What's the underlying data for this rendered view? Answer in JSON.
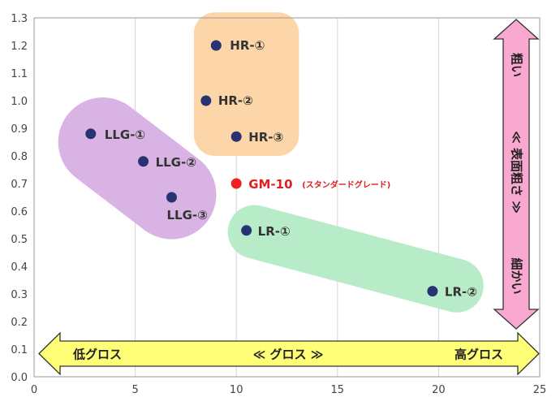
{
  "chart_data": {
    "type": "scatter",
    "xlim": [
      0,
      25
    ],
    "ylim": [
      0,
      1.3
    ],
    "x_ticks": [
      "0",
      "5",
      "10",
      "15",
      "20",
      "25"
    ],
    "y_ticks": [
      "0.0",
      "0.1",
      "0.2",
      "0.3",
      "0.4",
      "0.5",
      "0.6",
      "0.7",
      "0.8",
      "0.9",
      "1.0",
      "1.1",
      "1.2",
      "1.3"
    ],
    "grid": "vertical",
    "points": [
      {
        "label": "HR-①",
        "x": 9.0,
        "y": 1.2,
        "color": "#283372"
      },
      {
        "label": "HR-②",
        "x": 8.5,
        "y": 1.0,
        "color": "#283372"
      },
      {
        "label": "HR-③",
        "x": 10.0,
        "y": 0.87,
        "color": "#283372"
      },
      {
        "label": "LLG-①",
        "x": 2.8,
        "y": 0.88,
        "color": "#283372"
      },
      {
        "label": "LLG-②",
        "x": 5.4,
        "y": 0.78,
        "color": "#283372"
      },
      {
        "label": "LLG-③",
        "x": 6.8,
        "y": 0.65,
        "color": "#283372"
      },
      {
        "label": "GM-10",
        "sublabel": "(スタンダードグレード)",
        "x": 10.0,
        "y": 0.7,
        "color": "#ee2222"
      },
      {
        "label": "LR-①",
        "x": 10.5,
        "y": 0.53,
        "color": "#283372"
      },
      {
        "label": "LR-②",
        "x": 19.7,
        "y": 0.31,
        "color": "#283372"
      }
    ],
    "groups": [
      {
        "name": "HR",
        "color": "#fcd6a8"
      },
      {
        "name": "LLG",
        "color": "#d9b3e3"
      },
      {
        "name": "LR",
        "color": "#b8ecc8"
      }
    ],
    "horizontal_arrow": {
      "left": "低グロス",
      "center": "≪ グロス ≫",
      "right": "高グロス",
      "color": "#ffff77"
    },
    "vertical_arrow": {
      "top": "粗い",
      "center": "≪ 表面粗さ ≫",
      "bottom": "細かい",
      "color": "#f9a8cf"
    }
  }
}
